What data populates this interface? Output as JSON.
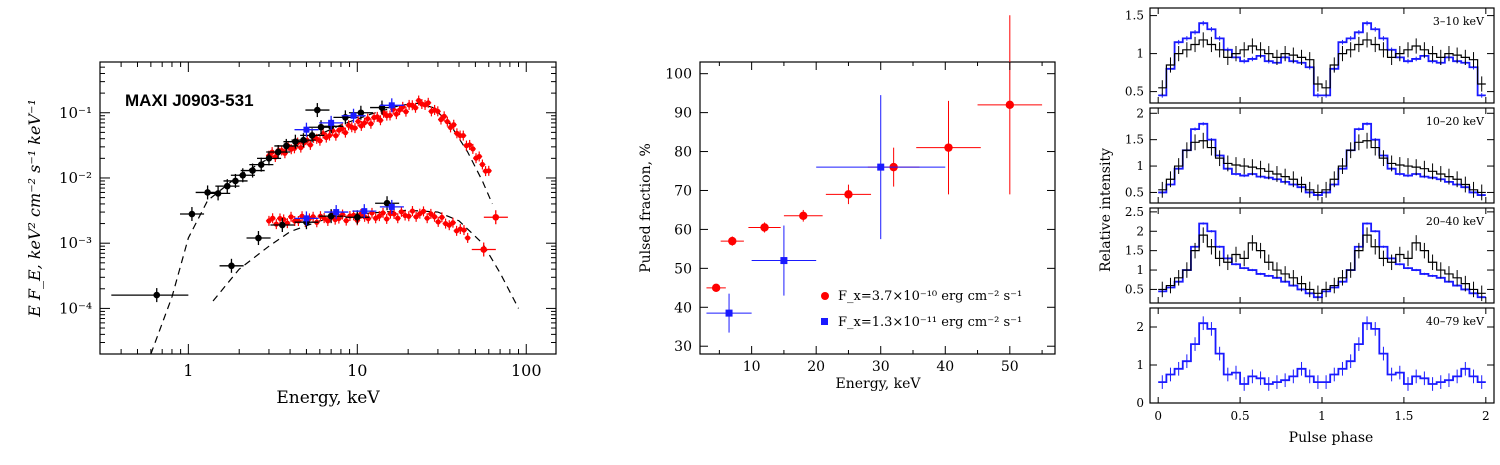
{
  "colors": {
    "red": "#ff0000",
    "blue": "#1a1aff",
    "black": "#000000"
  },
  "chart_data": [
    {
      "type": "scatter",
      "title": "MAXI J0903-531",
      "xlabel": "Energy, keV",
      "ylabel": "E F_E, keV² cm⁻² s⁻¹ keV⁻¹",
      "xscale": "log",
      "yscale": "log",
      "xlim": [
        0.3,
        150
      ],
      "ylim": [
        2e-05,
        0.6
      ],
      "xticklabels": [
        "1",
        "10",
        "100"
      ],
      "yticklabels": [
        "10⁻⁴",
        "10⁻³",
        "10⁻²",
        "10⁻¹"
      ],
      "series": [
        {
          "color": "black",
          "points": [
            [
              0.65,
              0.00016
            ],
            [
              1.05,
              0.0028
            ],
            [
              1.3,
              0.006
            ],
            [
              1.5,
              0.0058
            ],
            [
              1.7,
              0.0075
            ],
            [
              1.9,
              0.009
            ],
            [
              2.1,
              0.011
            ],
            [
              2.4,
              0.013
            ],
            [
              2.7,
              0.016
            ],
            [
              3.0,
              0.02
            ],
            [
              3.4,
              0.025
            ],
            [
              3.8,
              0.031
            ],
            [
              4.3,
              0.036
            ],
            [
              4.8,
              0.038
            ],
            [
              5.4,
              0.045
            ],
            [
              6.1,
              0.06
            ],
            [
              7.0,
              0.062
            ],
            [
              8.5,
              0.085
            ],
            [
              10.5,
              0.1
            ],
            [
              14.0,
              0.12
            ],
            [
              5.8,
              0.11
            ]
          ]
        },
        {
          "color": "black",
          "points": [
            [
              1.8,
              0.00045
            ],
            [
              2.6,
              0.0012
            ],
            [
              3.6,
              0.0019
            ],
            [
              5.0,
              0.0021
            ],
            [
              7.0,
              0.0026
            ],
            [
              10.0,
              0.0025
            ],
            [
              15.0,
              0.0041
            ]
          ]
        },
        {
          "color": "red",
          "points": [
            [
              56,
              0.0008
            ],
            [
              66,
              0.0025
            ]
          ]
        },
        {
          "color": "blue",
          "points": [
            [
              5.0,
              0.055
            ],
            [
              7.0,
              0.07
            ],
            [
              9.5,
              0.09
            ],
            [
              16,
              0.13
            ],
            [
              5.0,
              0.0024
            ],
            [
              7.5,
              0.003
            ],
            [
              11,
              0.0031
            ],
            [
              16,
              0.0036
            ]
          ]
        }
      ],
      "model_curves": [
        {
          "points": [
            [
              0.6,
              2e-05
            ],
            [
              0.8,
              0.00015
            ],
            [
              1.0,
              0.0012
            ],
            [
              1.3,
              0.0045
            ],
            [
              2,
              0.011
            ],
            [
              3,
              0.02
            ],
            [
              5,
              0.038
            ],
            [
              8,
              0.065
            ],
            [
              12,
              0.095
            ],
            [
              18,
              0.13
            ],
            [
              23,
              0.14
            ],
            [
              28,
              0.12
            ],
            [
              35,
              0.07
            ],
            [
              45,
              0.025
            ],
            [
              55,
              0.009
            ],
            [
              63,
              0.004
            ]
          ]
        },
        {
          "points": [
            [
              1.4,
              0.00013
            ],
            [
              2,
              0.0004
            ],
            [
              3,
              0.0009
            ],
            [
              4,
              0.0015
            ],
            [
              6,
              0.0022
            ],
            [
              10,
              0.0028
            ],
            [
              20,
              0.0032
            ],
            [
              30,
              0.003
            ],
            [
              40,
              0.0022
            ],
            [
              55,
              0.001
            ],
            [
              70,
              0.00035
            ],
            [
              90,
              0.0001
            ]
          ]
        }
      ]
    },
    {
      "type": "scatter",
      "xlabel": "Energy, keV",
      "ylabel": "Pulsed fraction, %",
      "xlim": [
        2,
        57
      ],
      "ylim": [
        28,
        103
      ],
      "xticks": [
        10,
        20,
        30,
        40,
        50
      ],
      "yticks": [
        30,
        40,
        50,
        60,
        70,
        80,
        90,
        100
      ],
      "series": [
        {
          "name": "F_x=3.7×10⁻¹⁰ erg cm⁻² s⁻¹",
          "color": "red",
          "points": [
            [
              4.5,
              45.0
            ],
            [
              7.0,
              57.0
            ],
            [
              12.0,
              60.5
            ],
            [
              18.0,
              63.5
            ],
            [
              25.0,
              69.0
            ],
            [
              32.0,
              76.0
            ],
            [
              40.5,
              81.0
            ],
            [
              50.0,
              92.0
            ]
          ],
          "xerr": [
            1.5,
            1.8,
            2.5,
            3.0,
            3.5,
            4.0,
            5.0,
            5.0
          ],
          "yerr": [
            1.0,
            1.2,
            1.3,
            1.5,
            2.5,
            5.0,
            12.0,
            23.0
          ]
        },
        {
          "name": "F_x=1.3×10⁻¹¹ erg cm⁻² s⁻¹",
          "color": "blue",
          "points": [
            [
              6.5,
              38.5
            ],
            [
              15.0,
              52.0
            ],
            [
              30.0,
              76.0
            ]
          ],
          "xerr": [
            3.5,
            5.0,
            10.0
          ],
          "yerr": [
            5.0,
            9.0,
            18.5
          ]
        }
      ]
    },
    {
      "type": "line",
      "xlabel": "Pulse phase",
      "ylabel": "Relative intensity",
      "xlim": [
        -0.05,
        2.05
      ],
      "xticks": [
        0,
        0.5,
        1,
        1.5,
        2
      ],
      "panels": [
        {
          "label": "3–10 keV",
          "ylim": [
            0.35,
            1.6
          ],
          "yticks": [
            0.5,
            1,
            1.5
          ],
          "blue": [
            0.45,
            0.8,
            1.15,
            1.2,
            1.28,
            1.4,
            1.32,
            1.2,
            1.05,
            0.95,
            0.9,
            0.93,
            0.97,
            0.9,
            0.88,
            0.95,
            0.9,
            0.88,
            0.82,
            0.45
          ],
          "black": [
            0.55,
            0.85,
            1.0,
            1.05,
            1.12,
            1.18,
            1.12,
            1.05,
            0.95,
            1.0,
            1.05,
            1.1,
            1.05,
            1.0,
            0.95,
            1.0,
            0.98,
            0.95,
            0.92,
            0.6
          ]
        },
        {
          "label": "10–20 keV",
          "ylim": [
            0.3,
            2.1
          ],
          "yticks": [
            0.5,
            1,
            1.5,
            2
          ],
          "blue": [
            0.5,
            0.65,
            0.95,
            1.3,
            1.7,
            1.8,
            1.5,
            1.2,
            0.95,
            0.85,
            0.82,
            0.85,
            0.8,
            0.78,
            0.75,
            0.7,
            0.65,
            0.6,
            0.5,
            0.45
          ],
          "black": [
            0.55,
            0.75,
            1.0,
            1.3,
            1.45,
            1.48,
            1.35,
            1.15,
            1.05,
            1.02,
            1.0,
            0.98,
            0.95,
            0.9,
            0.85,
            0.8,
            0.75,
            0.65,
            0.55,
            0.5
          ]
        },
        {
          "label": "20–40 keV",
          "ylim": [
            0.15,
            2.6
          ],
          "yticks": [
            0.5,
            1,
            1.5,
            2,
            2.5
          ],
          "blue": [
            0.45,
            0.55,
            0.7,
            1.0,
            1.6,
            2.2,
            2.0,
            1.6,
            1.3,
            1.15,
            1.05,
            1.0,
            0.9,
            0.85,
            0.8,
            0.7,
            0.6,
            0.5,
            0.4,
            0.3
          ],
          "black": [
            0.5,
            0.6,
            0.8,
            1.0,
            1.5,
            1.9,
            1.6,
            1.3,
            1.2,
            1.4,
            1.3,
            1.7,
            1.5,
            1.2,
            1.0,
            0.9,
            0.8,
            0.65,
            0.5,
            0.4
          ]
        },
        {
          "label": "40–79 keV",
          "ylim": [
            0,
            2.5
          ],
          "yticks": [
            0,
            1,
            2
          ],
          "blue": [
            0.55,
            0.75,
            0.9,
            1.1,
            1.55,
            2.1,
            1.95,
            1.3,
            0.75,
            0.8,
            0.5,
            0.7,
            0.65,
            0.5,
            0.55,
            0.6,
            0.7,
            0.9,
            0.7,
            0.55
          ]
        }
      ]
    }
  ]
}
